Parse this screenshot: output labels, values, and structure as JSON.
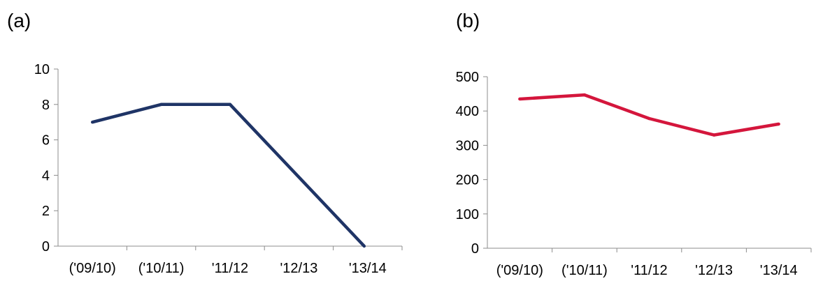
{
  "chart_data": [
    {
      "panel_label": "(a)",
      "type": "line",
      "categories": [
        "('09/10)",
        "('10/11)",
        "'11/12",
        "'12/13",
        "'13/14"
      ],
      "x_positions": [
        0.5,
        1.5,
        2.5,
        3.5,
        4.5
      ],
      "series": [
        {
          "x": [
            0.5,
            1.5,
            2.5,
            4.45
          ],
          "values": [
            7,
            8,
            8,
            0
          ],
          "color": "#1f3466"
        }
      ],
      "yticks": [
        "0",
        "2",
        "4",
        "6",
        "8",
        "10"
      ],
      "ylim": [
        0,
        10
      ],
      "xlim": [
        0,
        5
      ],
      "grid": false,
      "legend": "none"
    },
    {
      "panel_label": "(b)",
      "type": "line",
      "categories": [
        "('09/10)",
        "('10/11)",
        "'11/12",
        "'12/13",
        "'13/14"
      ],
      "x_positions": [
        0.5,
        1.5,
        2.5,
        3.5,
        4.5
      ],
      "series": [
        {
          "x": [
            0.5,
            1.5,
            2.5,
            3.5,
            4.5
          ],
          "values": [
            435,
            447,
            378,
            330,
            362
          ],
          "color": "#d4163c"
        }
      ],
      "yticks": [
        "0",
        "100",
        "200",
        "300",
        "400",
        "500"
      ],
      "ylim": [
        0,
        500
      ],
      "xlim": [
        0,
        5
      ],
      "grid": false,
      "legend": "none"
    }
  ]
}
